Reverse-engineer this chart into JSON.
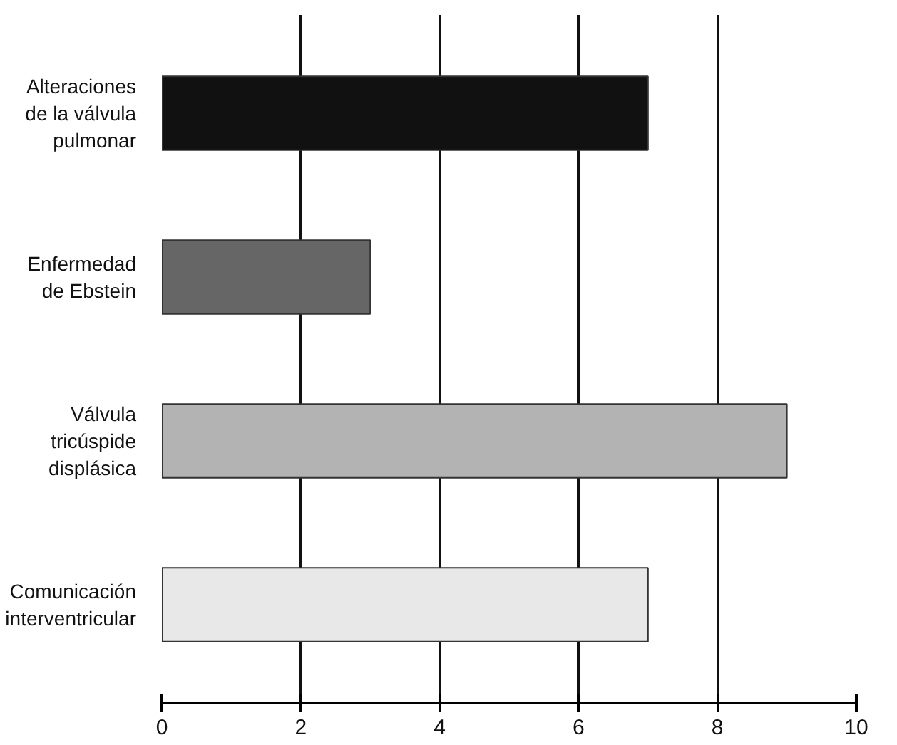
{
  "chart_data": {
    "type": "bar",
    "orientation": "horizontal",
    "categories": [
      "Alteraciones\nde la válvula\npulmonar",
      "Enfermedad\nde Ebstein",
      "Válvula\ntricúspide\ndisplásica",
      "Comunicación\ninterventricular"
    ],
    "values": [
      7.0,
      3.0,
      9.0,
      7.0
    ],
    "colors": [
      "#111111",
      "#666666",
      "#b3b3b3",
      "#e8e8e8"
    ],
    "xlim": [
      0,
      10
    ],
    "xticks": [
      0,
      2,
      4,
      6,
      8,
      10
    ],
    "grid": "x"
  }
}
